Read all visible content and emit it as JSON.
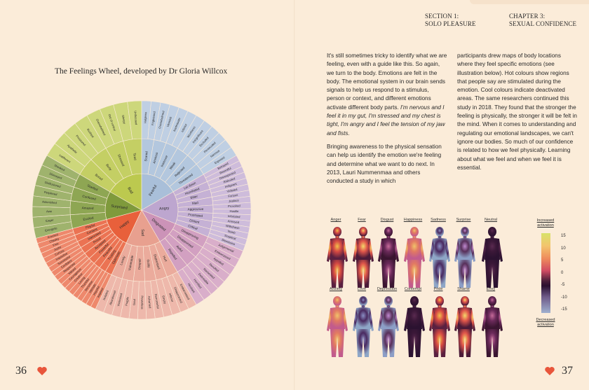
{
  "left_page": {
    "figure_title": "The Feelings Wheel, developed by Dr Gloria Willcox",
    "page_number": "36"
  },
  "right_page": {
    "section": "SECTION 1:",
    "section_name": "SOLO PLEASURE",
    "chapter": "CHAPTER 3:",
    "chapter_name": "SEXUAL CONFIDENCE",
    "page_number": "37",
    "col1_p1_a": "It's still sometimes tricky to identify what we are feeling, even with a guide like this. So again, we turn to the body. Emotions are felt in the body. The emotional system in our brain sends signals to help us respond to a stimulus, person or context, and different emotions activate different body parts. ",
    "col1_p1_b": "I'm nervous and I feel it in my gut, I'm stressed and my chest is tight, I'm angry and I feel the tension of my jaw and fists.",
    "col1_p2": "Bringing awareness to the physical sensation can help us identify the emotion we're feeling and determine what we want to do next. In 2013, Lauri Nummenmaa and others conducted a study in which",
    "col2_p1": "participants drew maps of body locations where they feel specific emotions (see illustration below). Hot colours show regions that people say are stimulated during the emotion. Cool colours indicate deactivated areas. The same researchers continued this study in 2018. They found that the stronger the feeling is physically, the stronger it will be felt in the mind. When it comes to understanding and regulating our emotional landscapes, we can't ignore our bodies. So much of our confidence is related to how we feel physically. Learning about what we feel and when we feel it is essential."
  },
  "body_maps": {
    "row1": [
      "Anger",
      "Fear",
      "Disgust",
      "Happiness",
      "Sadness",
      "Surprise",
      "Neutral"
    ],
    "row2": [
      "Anxiety",
      "Love",
      "Depression",
      "Contempt",
      "Pride",
      "Shame",
      "Envy"
    ],
    "scale_top": "Increased activation",
    "scale_bottom": "Decreased activation",
    "ticks": [
      "15",
      "10",
      "5",
      "0",
      "-5",
      "-10",
      "-15"
    ]
  },
  "wheel": {
    "inner": [
      {
        "label": "Bad",
        "color": "#bcc94f"
      },
      {
        "label": "Fearful",
        "color": "#a9bfd9"
      },
      {
        "label": "Angry",
        "color": "#bda6cf"
      },
      {
        "label": "Disgusted",
        "color": "#cc93b8"
      },
      {
        "label": "Sad",
        "color": "#e8a08f"
      },
      {
        "label": "Happy",
        "color": "#e8603b"
      },
      {
        "label": "Surprised",
        "color": "#7f9a3c"
      }
    ],
    "middle": [
      "Bored",
      "Busy",
      "Stressed",
      "Tired",
      "Scared",
      "Anxious",
      "Insecure",
      "Weak",
      "Rejected",
      "Threatened",
      "Let down",
      "Humiliated",
      "Bitter",
      "Mad",
      "Aggressive",
      "Frustrated",
      "Distant",
      "Critical",
      "Disapproving",
      "Disappointed",
      "Awful",
      "Repelled",
      "Hurt",
      "Depressed",
      "Guilty",
      "Despair",
      "Vulnerable",
      "Lonely",
      "Optimistic",
      "Trusting",
      "Peaceful",
      "Powerful",
      "Accepted",
      "Proud",
      "Interested",
      "Content",
      "Playful",
      "Excited",
      "Amazed",
      "Confused",
      "Startled"
    ],
    "outer": [
      "Indifferent",
      "Apathetic",
      "Pressured",
      "Rushed",
      "Overwhelmed",
      "Out of control",
      "Sleepy",
      "Unfocused",
      "Helpless",
      "Frightened",
      "Overwhelmed",
      "Worried",
      "Inadequate",
      "Inferior",
      "Worthless",
      "Insignificant",
      "Excluded",
      "Persecuted",
      "Nervous",
      "Exposed",
      "Betrayed",
      "Resentful",
      "Disrespected",
      "Ridiculed",
      "Indignant",
      "Violated",
      "Furious",
      "Jealous",
      "Provoked",
      "Hostile",
      "Infuriated",
      "Annoyed",
      "Withdrawn",
      "Numb",
      "Sceptical",
      "Dismissive",
      "Judgemental",
      "Embarrassed",
      "Appalled",
      "Revolted",
      "Nauseated",
      "Detestable",
      "Horrified",
      "Hesitant",
      "Embarrassed",
      "Disappointed",
      "Inferior",
      "Empty",
      "Remorseful",
      "Ashamed",
      "Powerless",
      "Grief",
      "Fragile",
      "Victimised",
      "Abandoned",
      "Isolated",
      "Inspired",
      "Hopeful",
      "Intimate",
      "Sensitive",
      "Thankful",
      "Loving",
      "Creative",
      "Courageous",
      "Valued",
      "Respected",
      "Confident",
      "Successful",
      "Inquisitive",
      "Curious",
      "Joyful",
      "Free",
      "Cheeky",
      "Aroused",
      "Energetic",
      "Eager",
      "Awe",
      "Astonished",
      "Perplexed",
      "Disillusioned",
      "Dismayed",
      "Shocked"
    ]
  },
  "colors": {
    "page_bg": "#fbecd9",
    "heart": "#e8553b"
  }
}
